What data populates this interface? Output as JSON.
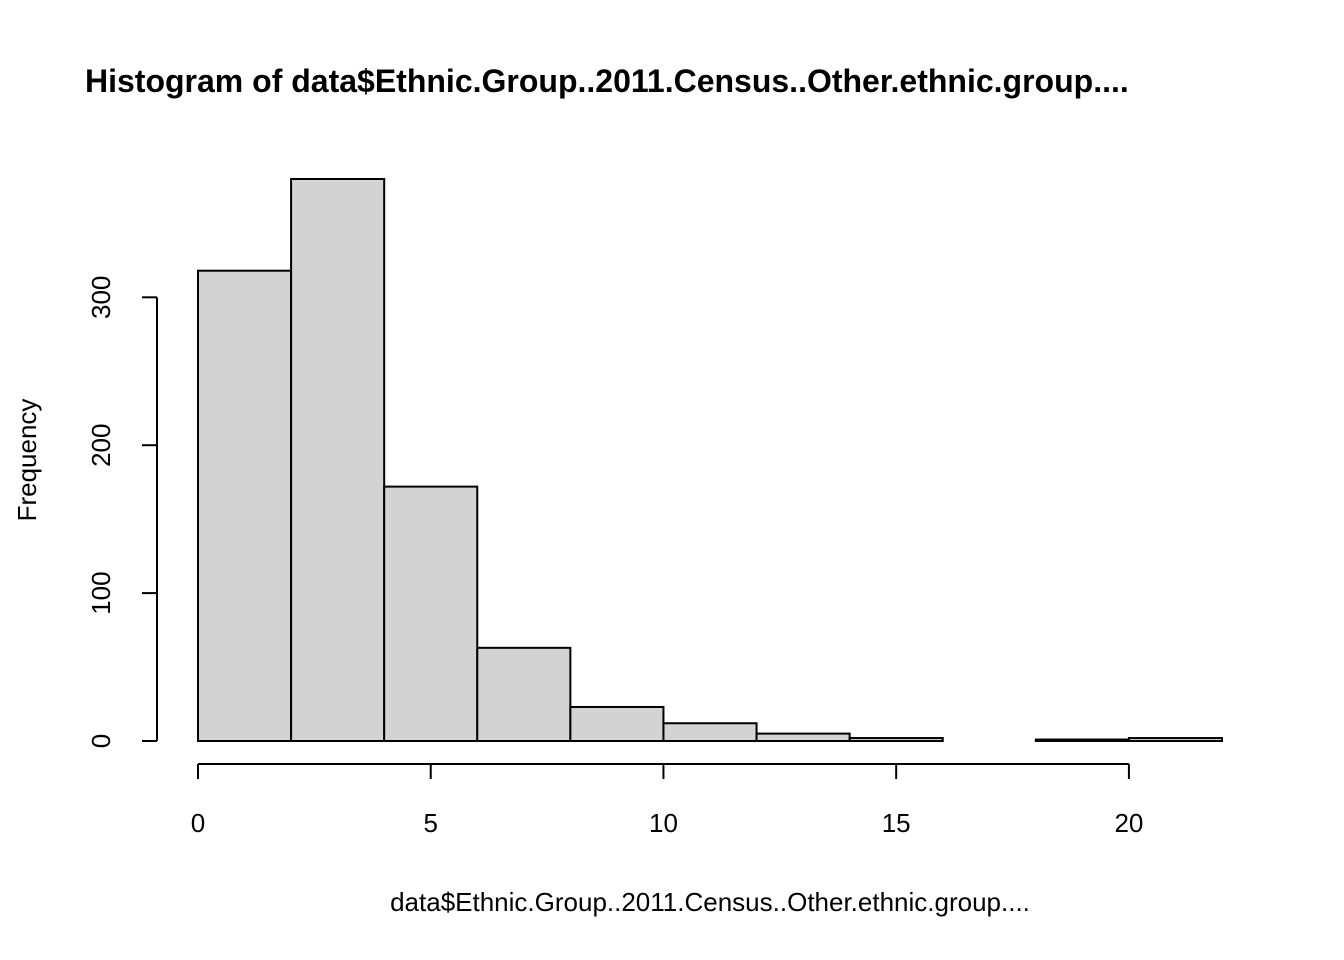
{
  "chart_data": {
    "type": "bar",
    "title": "Histogram of data$Ethnic.Group..2011.Census..Other.ethnic.group....",
    "xlabel": "data$Ethnic.Group..2011.Census..Other.ethnic.group....",
    "ylabel": "Frequency",
    "bin_edges": [
      0,
      2,
      4,
      6,
      8,
      10,
      12,
      14,
      16,
      18,
      20,
      22
    ],
    "values": [
      318,
      380,
      172,
      63,
      23,
      12,
      5,
      2,
      0,
      1,
      2
    ],
    "xlim": [
      0,
      22
    ],
    "ylim": [
      0,
      380
    ],
    "x_ticks": [
      0,
      5,
      10,
      15,
      20
    ],
    "y_ticks": [
      0,
      100,
      200,
      300
    ],
    "bar_color": "#d3d3d3",
    "border_color": "#000000",
    "grid": false,
    "legend": "none"
  }
}
